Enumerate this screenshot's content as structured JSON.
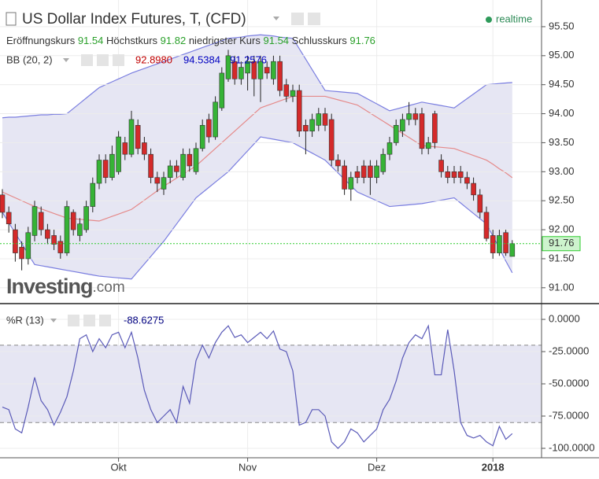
{
  "header": {
    "title": "US Dollar Index Futures, T, (CFD)",
    "status": "realtime",
    "ohlc_labels": [
      "Eröffnungskurs",
      "Höchstkurs",
      "niedrigster Kurs",
      "Schlusskurs"
    ],
    "logo": "Investing",
    "logo_suffix": ".com"
  },
  "chart_data": [
    {
      "type": "candlestick",
      "categories": [
        null,
        null,
        null,
        null,
        null,
        null,
        null,
        null,
        null,
        null,
        null,
        null,
        null,
        null,
        null,
        null,
        null,
        null,
        "Okt",
        null,
        null,
        null,
        null,
        null,
        null,
        null,
        null,
        null,
        null,
        null,
        null,
        null,
        null,
        null,
        null,
        null,
        null,
        null,
        "Nov",
        null,
        null,
        null,
        null,
        null,
        null,
        null,
        null,
        null,
        null,
        null,
        null,
        null,
        null,
        null,
        null,
        null,
        null,
        null,
        "Dez",
        null,
        null,
        null,
        null,
        null,
        null,
        null,
        null,
        null,
        null,
        null,
        null,
        null,
        null,
        null,
        null,
        null,
        "2018",
        null,
        null,
        null
      ],
      "open": [
        92.6,
        92.3,
        92.0,
        91.7,
        91.5,
        91.9,
        92.3,
        92.0,
        91.9,
        91.8,
        91.6,
        92.3,
        91.9,
        92.0,
        92.4,
        92.8,
        93.2,
        92.9,
        93.0,
        93.5,
        93.3,
        93.8,
        93.5,
        93.3,
        92.9,
        92.7,
        92.9,
        93.1,
        92.9,
        93.3,
        93.0,
        93.4,
        93.9,
        93.6,
        94.1,
        94.6,
        94.9,
        94.6,
        94.7,
        94.9,
        94.6,
        94.8,
        94.6,
        94.9,
        94.5,
        94.3,
        94.4,
        93.8,
        93.7,
        93.8,
        94.0,
        93.9,
        93.2,
        93.1,
        92.7,
        93.0,
        93.1,
        93.1,
        92.9,
        93.0,
        93.3,
        93.5,
        93.7,
        93.9,
        94.0,
        94.0,
        93.4,
        94.0,
        93.2,
        93.0,
        93.0,
        93.0,
        92.9,
        92.8,
        92.6,
        92.3,
        91.9,
        91.6,
        91.95,
        91.54
      ],
      "high": [
        92.7,
        92.4,
        92.1,
        91.8,
        92.05,
        92.5,
        92.4,
        92.1,
        92.0,
        91.9,
        92.5,
        92.35,
        92.2,
        92.5,
        92.9,
        93.3,
        93.3,
        93.45,
        93.7,
        93.6,
        94.05,
        93.9,
        93.6,
        93.4,
        93.0,
        93.0,
        93.2,
        93.2,
        93.4,
        93.4,
        93.5,
        93.9,
        94.0,
        94.3,
        94.8,
        95.1,
        95.0,
        94.9,
        95.0,
        95.0,
        95.0,
        94.9,
        95.0,
        95.0,
        94.6,
        94.5,
        94.5,
        93.9,
        94.0,
        94.1,
        94.1,
        94.0,
        93.3,
        93.2,
        93.0,
        93.1,
        93.2,
        93.2,
        93.2,
        93.4,
        93.6,
        93.9,
        94.0,
        94.2,
        94.1,
        94.1,
        93.6,
        94.05,
        93.3,
        93.1,
        93.1,
        93.1,
        93.0,
        92.9,
        92.7,
        92.4,
        92.0,
        92.0,
        92.0,
        91.82
      ],
      "low": [
        92.2,
        91.95,
        91.45,
        91.3,
        91.4,
        91.8,
        91.9,
        91.75,
        91.65,
        91.5,
        91.55,
        91.9,
        91.8,
        91.95,
        92.3,
        92.7,
        92.8,
        92.85,
        92.95,
        93.2,
        93.25,
        93.3,
        93.2,
        92.8,
        92.65,
        92.6,
        92.8,
        92.9,
        92.85,
        93.0,
        92.95,
        93.35,
        93.5,
        93.55,
        94.05,
        94.55,
        94.5,
        94.5,
        94.4,
        94.3,
        94.2,
        94.6,
        94.5,
        94.3,
        94.2,
        94.2,
        93.6,
        93.3,
        93.6,
        93.7,
        93.7,
        93.1,
        93.0,
        92.6,
        92.5,
        92.8,
        92.8,
        92.6,
        92.8,
        92.95,
        93.2,
        93.45,
        93.6,
        93.8,
        93.8,
        93.3,
        93.3,
        93.4,
        92.9,
        92.8,
        92.8,
        92.8,
        92.7,
        92.5,
        92.2,
        91.8,
        91.5,
        91.55,
        91.55,
        91.54
      ],
      "close": [
        92.3,
        92.1,
        91.6,
        91.5,
        91.95,
        92.4,
        92.0,
        91.85,
        91.75,
        91.6,
        92.4,
        92.0,
        92.1,
        92.4,
        92.8,
        93.2,
        92.9,
        93.3,
        93.6,
        93.3,
        93.9,
        93.4,
        93.3,
        92.9,
        92.8,
        92.9,
        93.1,
        93.0,
        93.3,
        93.1,
        93.4,
        93.8,
        93.6,
        94.2,
        94.7,
        95.0,
        94.6,
        94.8,
        94.9,
        94.6,
        94.9,
        94.7,
        94.9,
        94.4,
        94.3,
        94.4,
        93.7,
        93.7,
        93.9,
        94.0,
        93.8,
        93.2,
        93.1,
        92.7,
        92.9,
        92.9,
        92.9,
        92.9,
        93.1,
        93.3,
        93.5,
        93.8,
        93.9,
        94.0,
        93.9,
        93.4,
        93.5,
        93.5,
        93.0,
        92.9,
        92.9,
        92.9,
        92.8,
        92.6,
        92.3,
        91.85,
        91.6,
        91.9,
        91.6,
        91.76
      ],
      "up_color": "#36b336",
      "down_color": "#d42a2a",
      "last_color": "#2ecc2e",
      "indicator": "BB (20, 2)",
      "indicator_values": [
        "92.8980",
        "94.5384",
        "91.2576"
      ],
      "bands": {
        "upper": [
          93.93,
          93.94,
          93.94,
          93.95,
          93.96,
          93.97,
          93.98,
          93.98,
          93.99,
          93.99,
          94.0,
          94.09,
          94.18,
          94.27,
          94.36,
          94.45,
          94.5,
          94.55,
          94.6,
          94.65,
          94.7,
          94.74,
          94.78,
          94.82,
          94.86,
          94.9,
          94.94,
          94.98,
          95.02,
          95.06,
          95.1,
          95.14,
          95.18,
          95.22,
          95.26,
          95.3,
          95.31,
          95.32,
          95.34,
          95.35,
          95.36,
          95.35,
          95.34,
          95.32,
          95.31,
          95.3,
          95.12,
          94.94,
          94.76,
          94.58,
          94.4,
          94.39,
          94.38,
          94.37,
          94.36,
          94.35,
          94.29,
          94.23,
          94.17,
          94.11,
          94.05,
          94.08,
          94.11,
          94.14,
          94.17,
          94.2,
          94.18,
          94.16,
          94.14,
          94.12,
          94.1,
          94.18,
          94.26,
          94.34,
          94.42,
          94.5,
          94.51,
          94.52,
          94.53,
          94.5384
        ],
        "middle": [
          92.65,
          92.6,
          92.55,
          92.5,
          92.45,
          92.4,
          92.36,
          92.32,
          92.28,
          92.24,
          92.2,
          92.19,
          92.18,
          92.17,
          92.16,
          92.15,
          92.19,
          92.23,
          92.27,
          92.31,
          92.35,
          92.43,
          92.51,
          92.59,
          92.67,
          92.75,
          92.82,
          92.89,
          92.96,
          93.03,
          93.1,
          93.2,
          93.3,
          93.4,
          93.5,
          93.6,
          93.7,
          93.8,
          93.9,
          94.0,
          94.1,
          94.14,
          94.18,
          94.22,
          94.26,
          94.3,
          94.3,
          94.3,
          94.3,
          94.3,
          94.3,
          94.27,
          94.24,
          94.21,
          94.18,
          94.15,
          94.08,
          94.01,
          93.94,
          93.87,
          93.8,
          93.73,
          93.66,
          93.59,
          93.52,
          93.45,
          93.44,
          93.43,
          93.42,
          93.41,
          93.4,
          93.36,
          93.32,
          93.28,
          93.24,
          93.2,
          93.13,
          93.05,
          92.98,
          92.898
        ],
        "lower": [
          92.3,
          92.12,
          91.94,
          91.76,
          91.58,
          91.4,
          91.38,
          91.36,
          91.34,
          91.32,
          91.3,
          91.28,
          91.26,
          91.24,
          91.22,
          91.2,
          91.19,
          91.18,
          91.17,
          91.16,
          91.15,
          91.28,
          91.41,
          91.54,
          91.67,
          91.8,
          91.95,
          92.1,
          92.25,
          92.4,
          92.55,
          92.64,
          92.73,
          92.82,
          92.91,
          93.0,
          93.12,
          93.24,
          93.36,
          93.48,
          93.6,
          93.58,
          93.56,
          93.54,
          93.52,
          93.5,
          93.44,
          93.38,
          93.32,
          93.26,
          93.2,
          93.09,
          92.98,
          92.87,
          92.76,
          92.65,
          92.6,
          92.55,
          92.5,
          92.45,
          92.4,
          92.41,
          92.42,
          92.43,
          92.44,
          92.45,
          92.47,
          92.49,
          92.51,
          92.53,
          92.55,
          92.46,
          92.37,
          92.28,
          92.19,
          92.1,
          91.89,
          91.68,
          91.46,
          91.2576
        ],
        "edge_color": "#7a7ee0",
        "middle_color": "#e58a8a",
        "fill": "#e6e6f3"
      },
      "ylim": [
        90.74,
        95.96
      ],
      "yticks": [
        {
          "value": 95.5,
          "label": "95.50"
        },
        {
          "value": 95,
          "label": "95.00"
        },
        {
          "value": 94.5,
          "label": "94.50"
        },
        {
          "value": 94,
          "label": "94.00"
        },
        {
          "value": 93.5,
          "label": "93.50"
        },
        {
          "value": 93,
          "label": "93.00"
        },
        {
          "value": 92.5,
          "label": "92.50"
        },
        {
          "value": 92,
          "label": "92.00"
        },
        {
          "value": 91.5,
          "label": "91.50"
        },
        {
          "value": 91,
          "label": "91.00"
        }
      ],
      "grid": true
    },
    {
      "type": "line",
      "indicator": "%R (13)",
      "value_label": "-88.6275",
      "color": "#5a5ab8",
      "values": [
        -68,
        -70,
        -85,
        -88,
        -68,
        -45,
        -63,
        -70,
        -82,
        -72,
        -60,
        -40,
        -15,
        -12,
        -25,
        -15,
        -22,
        -12,
        -10,
        -22,
        -10,
        -30,
        -55,
        -70,
        -80,
        -75,
        -70,
        -80,
        -52,
        -65,
        -32,
        -20,
        -30,
        -18,
        -10,
        -5,
        -14,
        -12,
        -18,
        -14,
        -10,
        -15,
        -9,
        -23,
        -25,
        -40,
        -82,
        -80,
        -70,
        -70,
        -75,
        -95,
        -100,
        -95,
        -85,
        -88,
        -95,
        -90,
        -85,
        -70,
        -62,
        -48,
        -30,
        -18,
        -12,
        -15,
        -5,
        -43,
        -43,
        -8,
        -40,
        -80,
        -90,
        -92,
        -90,
        -95,
        -98,
        -83,
        -93,
        -88.6275
      ],
      "levels": [
        -20,
        -80
      ],
      "level_fill": "#e6e6f3",
      "ylim": [
        -106.1,
        11
      ],
      "yticks": [
        {
          "value": 0,
          "label": "0.0000"
        },
        {
          "value": -25,
          "label": "-25.0000"
        },
        {
          "value": -50,
          "label": "-50.0000"
        },
        {
          "value": -75,
          "label": "-75.0000"
        },
        {
          "value": -100,
          "label": "-100.0000"
        }
      ],
      "grid": true
    }
  ]
}
